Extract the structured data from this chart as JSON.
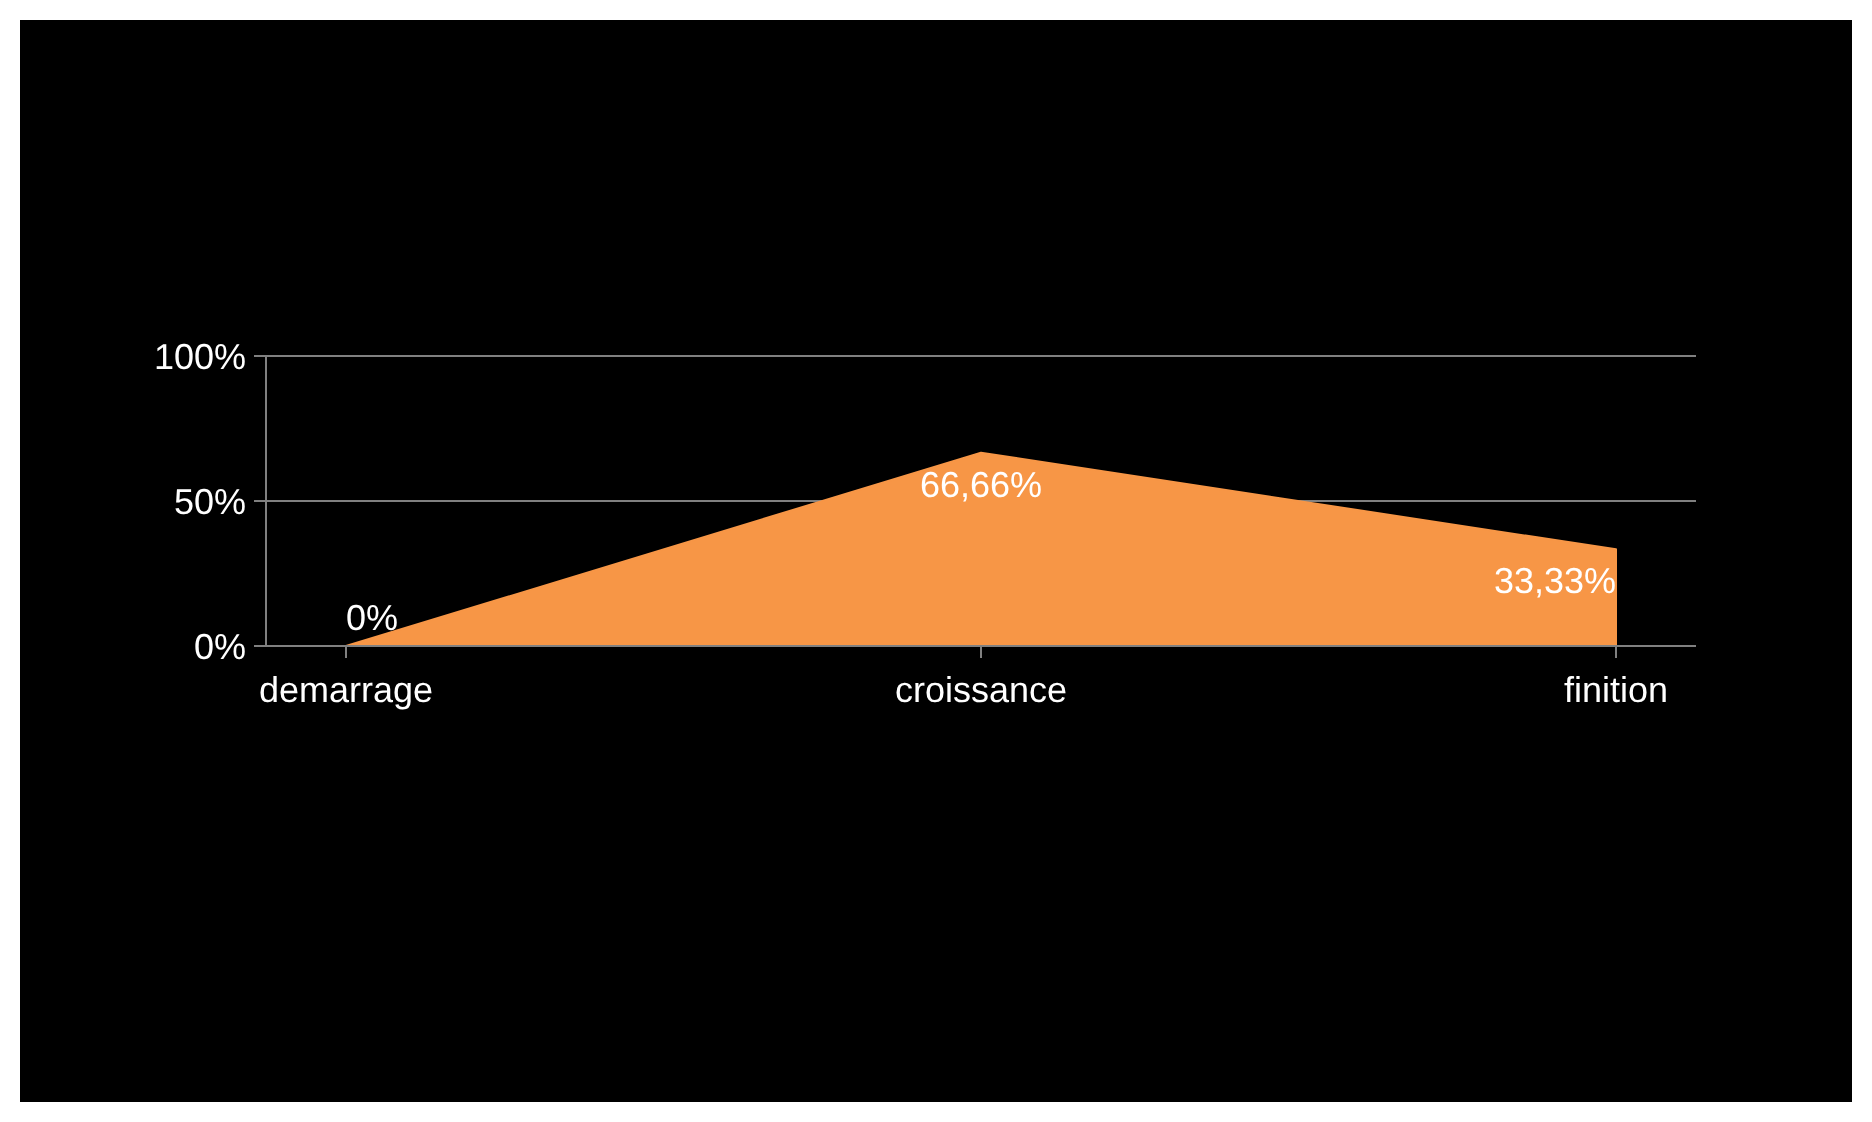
{
  "chart_data": {
    "type": "area",
    "categories": [
      "demarrage",
      "croissance",
      "finition"
    ],
    "series": [
      {
        "color": "#f79646",
        "values": [
          0,
          66.66,
          33.33
        ],
        "value_labels": [
          "0%",
          "66,66%",
          "33,33%"
        ]
      }
    ],
    "ylim": [
      0,
      100
    ],
    "yticks": [
      {
        "value": 0,
        "label": "0%"
      },
      {
        "value": 50,
        "label": "50%"
      },
      {
        "value": 100,
        "label": "100%"
      }
    ],
    "grid": "y"
  }
}
